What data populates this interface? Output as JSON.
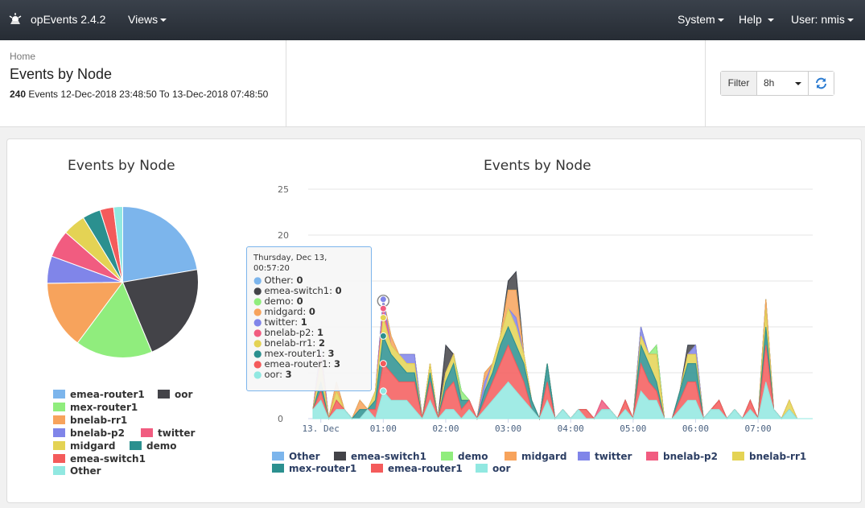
{
  "nav": {
    "brand": "opEvents 2.4.2",
    "views": "Views",
    "system": "System",
    "help": "Help",
    "user": "User: nmis"
  },
  "header": {
    "breadcrumb": "Home",
    "title": "Events by Node",
    "count": "240",
    "range": "Events 12-Dec-2018 23:48:50 To 13-Dec-2018 07:48:50",
    "filter_label": "Filter",
    "filter_value": "8h"
  },
  "pie": {
    "title": "Events by Node",
    "legend": [
      {
        "name": "emea-router1",
        "color": "#7cb5ec"
      },
      {
        "name": "oor",
        "color": "#434348"
      },
      {
        "name": "mex-router1",
        "color": "#90ed7d"
      },
      {
        "name": "bnelab-rr1",
        "color": "#f7a35c"
      },
      {
        "name": "bnelab-p2",
        "color": "#8085e9"
      },
      {
        "name": "twitter",
        "color": "#f15c80"
      },
      {
        "name": "midgard",
        "color": "#e4d354"
      },
      {
        "name": "demo",
        "color": "#2b908f"
      },
      {
        "name": "emea-switch1",
        "color": "#f45b5b"
      },
      {
        "name": "Other",
        "color": "#91e8e1"
      }
    ]
  },
  "area": {
    "title": "Events by Node",
    "legend": [
      {
        "name": "Other",
        "color": "#7cb5ec"
      },
      {
        "name": "emea-switch1",
        "color": "#434348"
      },
      {
        "name": "demo",
        "color": "#90ed7d"
      },
      {
        "name": "midgard",
        "color": "#f7a35c"
      },
      {
        "name": "twitter",
        "color": "#8085e9"
      },
      {
        "name": "bnelab-p2",
        "color": "#f15c80"
      },
      {
        "name": "bnelab-rr1",
        "color": "#e4d354"
      },
      {
        "name": "mex-router1",
        "color": "#2b908f"
      },
      {
        "name": "emea-router1",
        "color": "#f45b5b"
      },
      {
        "name": "oor",
        "color": "#91e8e1"
      }
    ]
  },
  "tooltip": {
    "header": "Thursday, Dec 13, 00:57:20",
    "rows": [
      {
        "name": "Other",
        "value": "0",
        "color": "#7cb5ec"
      },
      {
        "name": "emea-switch1",
        "value": "0",
        "color": "#434348"
      },
      {
        "name": "demo",
        "value": "0",
        "color": "#90ed7d"
      },
      {
        "name": "midgard",
        "value": "0",
        "color": "#f7a35c"
      },
      {
        "name": "twitter",
        "value": "1",
        "color": "#8085e9"
      },
      {
        "name": "bnelab-p2",
        "value": "1",
        "color": "#f15c80"
      },
      {
        "name": "bnelab-rr1",
        "value": "2",
        "color": "#e4d354"
      },
      {
        "name": "mex-router1",
        "value": "3",
        "color": "#2b908f"
      },
      {
        "name": "emea-router1",
        "value": "3",
        "color": "#f45b5b"
      },
      {
        "name": "oor",
        "value": "3",
        "color": "#91e8e1"
      }
    ]
  },
  "chart_data": [
    {
      "type": "pie",
      "title": "Events by Node",
      "categories": [
        "emea-router1",
        "oor",
        "mex-router1",
        "bnelab-rr1",
        "bnelab-p2",
        "twitter",
        "midgard",
        "demo",
        "emea-switch1",
        "Other"
      ],
      "values": [
        23,
        22,
        17,
        15,
        6,
        6,
        5,
        4,
        3,
        2
      ],
      "colors": [
        "#7cb5ec",
        "#434348",
        "#90ed7d",
        "#f7a35c",
        "#8085e9",
        "#f15c80",
        "#e4d354",
        "#2b908f",
        "#f45b5b",
        "#91e8e1"
      ]
    },
    {
      "type": "area",
      "title": "Events by Node",
      "stacked": true,
      "x_tick_labels": [
        "13. Dec",
        "01:00",
        "02:00",
        "03:00",
        "04:00",
        "05:00",
        "06:00",
        "07:00"
      ],
      "y_ticks": [
        0,
        5,
        10,
        15,
        20,
        25
      ],
      "ylim": [
        0,
        25
      ],
      "x": [
        "23:49",
        "00:00",
        "00:08",
        "00:15",
        "00:22",
        "00:30",
        "00:37",
        "00:45",
        "00:52",
        "00:57",
        "01:05",
        "01:12",
        "01:20",
        "01:28",
        "01:35",
        "01:42",
        "01:50",
        "01:57",
        "02:05",
        "02:12",
        "02:20",
        "02:27",
        "02:35",
        "02:42",
        "02:50",
        "02:57",
        "03:05",
        "03:12",
        "03:20",
        "03:27",
        "03:35",
        "03:42",
        "03:50",
        "03:57",
        "04:05",
        "04:12",
        "04:20",
        "04:27",
        "04:35",
        "04:42",
        "04:50",
        "04:57",
        "05:05",
        "05:12",
        "05:20",
        "05:27",
        "05:35",
        "05:42",
        "05:50",
        "05:57",
        "06:05",
        "06:12",
        "06:20",
        "06:27",
        "06:35",
        "06:42",
        "06:50",
        "06:57",
        "07:05",
        "07:12",
        "07:20",
        "07:27",
        "07:35",
        "07:42",
        "07:49"
      ],
      "series": [
        {
          "name": "oor",
          "values": [
            1,
            2,
            0,
            1,
            1,
            0,
            0,
            1,
            0,
            3,
            2,
            2,
            2,
            1,
            0,
            2,
            0,
            1,
            1,
            0,
            1,
            0,
            1,
            2,
            3,
            4,
            3,
            2,
            1,
            0,
            2,
            0,
            1,
            0,
            1,
            0,
            0,
            1,
            1,
            0,
            1,
            0,
            3,
            2,
            2,
            0,
            0,
            1,
            2,
            2,
            0,
            1,
            1,
            0,
            1,
            0,
            1,
            0,
            4,
            1,
            0,
            1,
            0,
            0,
            0
          ]
        },
        {
          "name": "emea-router1",
          "values": [
            0,
            1,
            0,
            1,
            0,
            0,
            0,
            0,
            1,
            3,
            3,
            2,
            2,
            3,
            0,
            2,
            0,
            2,
            3,
            1,
            1,
            0,
            1,
            2,
            3,
            4,
            3,
            2,
            0,
            0,
            2,
            0,
            0,
            0,
            0,
            1,
            0,
            0,
            0,
            0,
            1,
            0,
            3,
            2,
            1,
            0,
            0,
            1,
            2,
            2,
            0,
            0,
            1,
            0,
            0,
            0,
            1,
            0,
            4,
            0,
            0,
            0,
            0,
            0,
            0
          ]
        },
        {
          "name": "mex-router1",
          "values": [
            0,
            1,
            0,
            0,
            0,
            0,
            1,
            0,
            1,
            3,
            2,
            2,
            1,
            1,
            0,
            1,
            0,
            1,
            2,
            1,
            0,
            0,
            1,
            1,
            2,
            2,
            2,
            2,
            1,
            0,
            2,
            0,
            0,
            0,
            0,
            0,
            0,
            0,
            0,
            0,
            0,
            0,
            2,
            2,
            1,
            0,
            0,
            1,
            2,
            2,
            0,
            0,
            0,
            0,
            0,
            0,
            0,
            0,
            2,
            0,
            0,
            0,
            0,
            0,
            0
          ]
        },
        {
          "name": "bnelab-rr1",
          "values": [
            0,
            2,
            0,
            1,
            0,
            0,
            0,
            0,
            1,
            2,
            1,
            1,
            1,
            1,
            0,
            1,
            0,
            1,
            1,
            0,
            0,
            0,
            0,
            1,
            1,
            2,
            2,
            1,
            0,
            0,
            0,
            0,
            0,
            0,
            0,
            0,
            0,
            0,
            0,
            0,
            0,
            0,
            1,
            1,
            3,
            0,
            0,
            0,
            1,
            1,
            0,
            0,
            0,
            0,
            0,
            0,
            0,
            0,
            2,
            0,
            0,
            1,
            0,
            0,
            0
          ]
        },
        {
          "name": "bnelab-p2",
          "values": [
            0,
            1,
            0,
            0,
            0,
            0,
            0,
            0,
            0,
            1,
            0,
            0,
            0,
            0,
            0,
            0,
            0,
            0,
            0,
            0,
            0,
            0,
            0,
            0,
            0,
            0,
            0,
            0,
            0,
            0,
            0,
            0,
            0,
            0,
            0,
            0,
            0,
            1,
            0,
            0,
            0,
            0,
            0,
            0,
            0,
            0,
            0,
            0,
            0,
            0,
            0,
            0,
            0,
            0,
            0,
            0,
            0,
            0,
            0,
            0,
            0,
            0,
            0,
            0,
            0
          ]
        },
        {
          "name": "twitter",
          "values": [
            0,
            1,
            0,
            0,
            0,
            0,
            0,
            0,
            0,
            1,
            0,
            0,
            1,
            1,
            0,
            0,
            0,
            0,
            0,
            0,
            0,
            0,
            1,
            0,
            0,
            0,
            1,
            0,
            0,
            0,
            0,
            0,
            0,
            0,
            0,
            0,
            0,
            0,
            0,
            0,
            0,
            0,
            1,
            0,
            0,
            0,
            0,
            0,
            0,
            1,
            0,
            0,
            0,
            0,
            0,
            0,
            0,
            0,
            0,
            0,
            0,
            0,
            0,
            0,
            0
          ]
        },
        {
          "name": "midgard",
          "values": [
            0,
            0,
            0,
            1,
            0,
            0,
            1,
            0,
            0,
            0,
            1,
            0,
            0,
            0,
            0,
            0,
            0,
            0,
            0,
            0,
            0,
            0,
            1,
            0,
            0,
            2,
            3,
            0,
            0,
            0,
            0,
            0,
            0,
            0,
            0,
            0,
            0,
            0,
            0,
            0,
            0,
            0,
            0,
            0,
            0,
            0,
            0,
            0,
            0,
            0,
            0,
            0,
            0,
            0,
            0,
            0,
            0,
            0,
            1,
            0,
            0,
            0,
            0,
            0,
            0
          ]
        },
        {
          "name": "demo",
          "values": [
            0,
            0,
            0,
            0,
            0,
            0,
            0,
            0,
            0,
            0,
            0,
            0,
            0,
            0,
            0,
            0,
            0,
            0,
            0,
            1,
            0,
            0,
            0,
            0,
            0,
            0,
            0,
            0,
            0,
            0,
            0,
            0,
            0,
            0,
            0,
            0,
            0,
            0,
            0,
            0,
            0,
            0,
            0,
            0,
            1,
            0,
            0,
            0,
            0,
            0,
            0,
            0,
            0,
            0,
            0,
            0,
            0,
            0,
            0,
            0,
            0,
            0,
            0,
            0,
            0
          ]
        },
        {
          "name": "emea-switch1",
          "values": [
            0,
            0,
            0,
            0,
            0,
            0,
            0,
            0,
            0,
            0,
            0,
            0,
            0,
            0,
            0,
            0,
            0,
            3,
            0,
            0,
            0,
            0,
            0,
            0,
            0,
            1,
            2,
            0,
            0,
            0,
            0,
            0,
            0,
            0,
            0,
            0,
            0,
            0,
            0,
            0,
            0,
            0,
            0,
            0,
            0,
            0,
            0,
            0,
            1,
            0,
            0,
            0,
            0,
            0,
            0,
            0,
            0,
            0,
            0,
            0,
            0,
            0,
            0,
            0,
            0
          ]
        },
        {
          "name": "Other",
          "values": [
            0,
            0,
            0,
            0,
            0,
            0,
            0,
            0,
            0,
            0,
            0,
            0,
            0,
            0,
            0,
            0,
            0,
            0,
            0,
            0,
            0,
            0,
            0,
            0,
            0,
            0,
            0,
            0,
            0,
            0,
            0,
            0,
            0,
            0,
            0,
            0,
            0,
            0,
            0,
            0,
            0,
            0,
            0,
            0,
            0,
            0,
            0,
            0,
            0,
            0,
            0,
            0,
            0,
            0,
            0,
            0,
            0,
            0,
            0,
            0,
            0,
            0,
            0,
            0,
            0
          ]
        }
      ]
    }
  ]
}
